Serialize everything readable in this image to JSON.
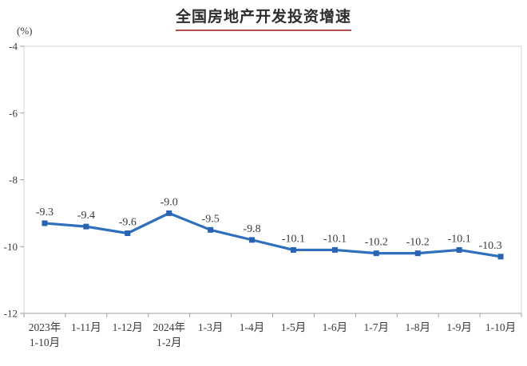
{
  "chart": {
    "accent_underline_color": "#b5514c",
    "line_color": "#2e6fbe",
    "marker_color": "#2a63b0",
    "axis_box_color": "#d4d4d4",
    "axis_line_color": "#9e9e9e",
    "text_color": "#3a3a3a"
  },
  "chart_data": {
    "type": "line",
    "title": "全国房地产开发投资增速",
    "ylabel": "(%)",
    "xlabel": "",
    "categories": [
      "2023年\n1-10月",
      "1-11月",
      "1-12月",
      "2024年\n1-2月",
      "1-3月",
      "1-4月",
      "1-5月",
      "1-6月",
      "1-7月",
      "1-8月",
      "1-9月",
      "1-10月"
    ],
    "values": [
      -9.3,
      -9.4,
      -9.6,
      -9.0,
      -9.5,
      -9.8,
      -10.1,
      -10.1,
      -10.2,
      -10.2,
      -10.1,
      -10.3
    ],
    "data_labels": [
      "-9.3",
      "-9.4",
      "-9.6",
      "-9.0",
      "-9.5",
      "-9.8",
      "-10.1",
      "-10.1",
      "-10.2",
      "-10.2",
      "-10.1",
      "-10.3"
    ],
    "ylim": [
      -12,
      -4
    ],
    "yticks": [
      -4,
      -6,
      -8,
      -10,
      -12
    ],
    "grid": false,
    "legend": false,
    "marker": "square"
  }
}
